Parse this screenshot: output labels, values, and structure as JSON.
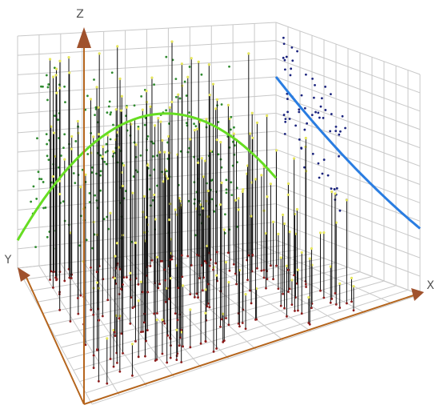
{
  "axes": {
    "z": "Z",
    "y": "Y",
    "x": "X"
  }
}
